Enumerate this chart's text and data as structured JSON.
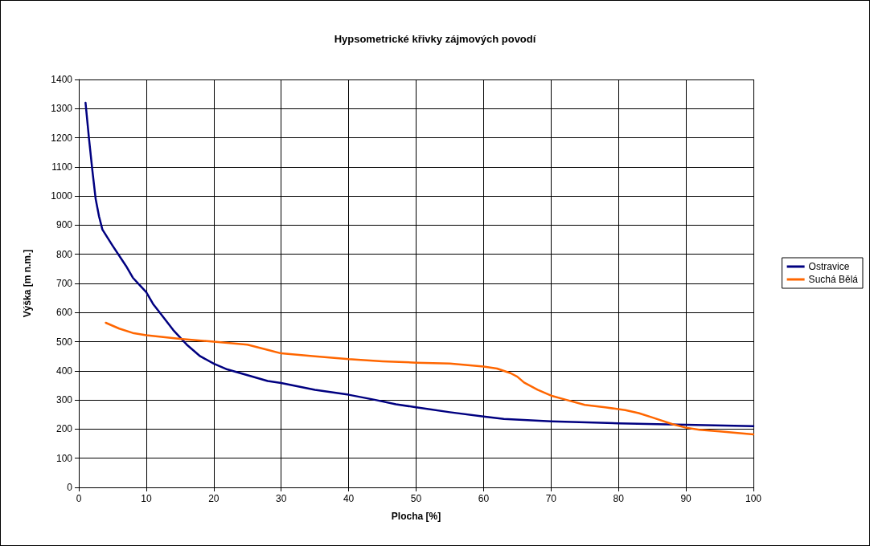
{
  "chart_data": {
    "type": "line",
    "title": "Hypsometrické křivky zájmových povodí",
    "xlabel": "Plocha [%]",
    "ylabel": "Výška [m n.m.]",
    "xlim": [
      0,
      100
    ],
    "xticks": [
      0,
      10,
      20,
      30,
      40,
      50,
      60,
      70,
      80,
      90,
      100
    ],
    "ylim": [
      0,
      1400
    ],
    "yticks": [
      0,
      100,
      200,
      300,
      400,
      500,
      600,
      700,
      800,
      900,
      1000,
      1100,
      1200,
      1300,
      1400
    ],
    "grid": true,
    "legend": "right",
    "marker": "none",
    "line_style": "solid",
    "series": [
      {
        "name": "Ostravice",
        "color": "#000080",
        "x": [
          1,
          1.5,
          2,
          2.5,
          3,
          3.5,
          5,
          7,
          8,
          9,
          10,
          11,
          12,
          14,
          16,
          18,
          20,
          22,
          25,
          28,
          30,
          35,
          40,
          44,
          47,
          50,
          55,
          60,
          63,
          70,
          80,
          90,
          100
        ],
        "values": [
          1320,
          1200,
          1090,
          990,
          930,
          885,
          830,
          760,
          720,
          695,
          670,
          630,
          600,
          540,
          490,
          450,
          425,
          405,
          385,
          365,
          358,
          335,
          318,
          300,
          285,
          275,
          258,
          243,
          235,
          227,
          220,
          215,
          210
        ]
      },
      {
        "name": "Suchá Bělá",
        "color": "#ff6600",
        "x": [
          4,
          6,
          8,
          10,
          15,
          20,
          25,
          28,
          30,
          35,
          40,
          45,
          50,
          55,
          60,
          62,
          64,
          65,
          66,
          68,
          70,
          72,
          75,
          78,
          81,
          83,
          85,
          88,
          90,
          92,
          95,
          100
        ],
        "values": [
          565,
          545,
          530,
          522,
          510,
          500,
          490,
          472,
          460,
          450,
          440,
          433,
          428,
          425,
          415,
          408,
          392,
          380,
          360,
          335,
          315,
          302,
          283,
          275,
          265,
          255,
          240,
          217,
          205,
          198,
          192,
          182
        ]
      }
    ]
  }
}
